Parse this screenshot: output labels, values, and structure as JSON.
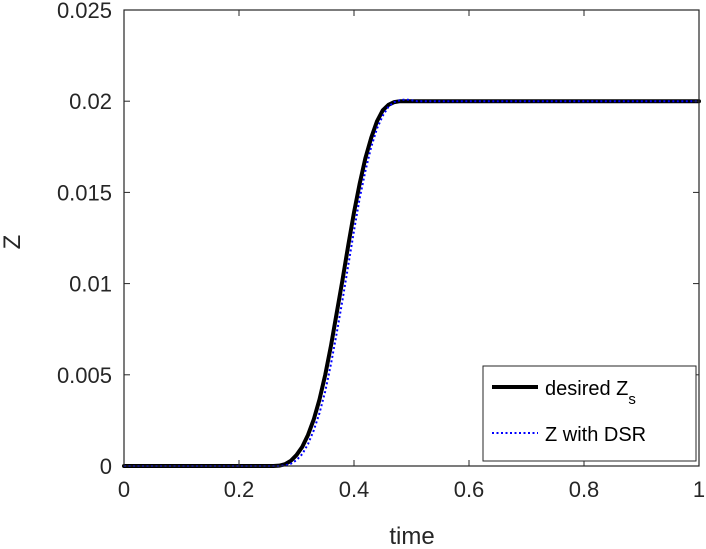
{
  "chart_data": {
    "type": "line",
    "xlabel": "time",
    "ylabel": "Z",
    "xlim": [
      0,
      1
    ],
    "ylim": [
      0,
      0.025
    ],
    "xticks": [
      "0",
      "0.2",
      "0.4",
      "0.6",
      "0.8",
      "1"
    ],
    "yticks": [
      "0",
      "0.005",
      "0.01",
      "0.015",
      "0.02",
      "0.025"
    ],
    "grid": false,
    "legend_position": "bottom-right",
    "series": [
      {
        "name": "desired Z",
        "name_subscript": "s",
        "style": "solid",
        "color": "#000000",
        "x": [
          0,
          0.1,
          0.2,
          0.26,
          0.27,
          0.28,
          0.29,
          0.3,
          0.31,
          0.32,
          0.33,
          0.34,
          0.35,
          0.36,
          0.37,
          0.38,
          0.39,
          0.4,
          0.41,
          0.42,
          0.43,
          0.44,
          0.45,
          0.46,
          0.47,
          0.48,
          0.49,
          0.5,
          0.6,
          0.7,
          0.8,
          0.9,
          1.0
        ],
        "y": [
          0,
          0,
          0,
          0,
          2e-05,
          0.0001,
          0.00028,
          0.0006,
          0.00105,
          0.0017,
          0.00255,
          0.00365,
          0.005,
          0.0066,
          0.0084,
          0.0102,
          0.0121,
          0.0139,
          0.0155,
          0.0169,
          0.018,
          0.0189,
          0.0195,
          0.0198,
          0.01995,
          0.02,
          0.02,
          0.02,
          0.02,
          0.02,
          0.02,
          0.02,
          0.02
        ]
      },
      {
        "name": "Z with DSR",
        "style": "dotted",
        "color": "#0000ff",
        "x": [
          0,
          0.1,
          0.2,
          0.27,
          0.28,
          0.29,
          0.3,
          0.31,
          0.32,
          0.33,
          0.34,
          0.35,
          0.36,
          0.37,
          0.38,
          0.39,
          0.4,
          0.41,
          0.42,
          0.43,
          0.44,
          0.45,
          0.46,
          0.47,
          0.48,
          0.49,
          0.5,
          0.51,
          0.52,
          0.6,
          0.7,
          0.8,
          0.9,
          1.0
        ],
        "y": [
          0,
          0,
          0,
          0,
          3e-05,
          0.00012,
          0.00032,
          0.00065,
          0.0012,
          0.00195,
          0.0029,
          0.0041,
          0.0056,
          0.0073,
          0.0091,
          0.011,
          0.0129,
          0.0147,
          0.0162,
          0.0175,
          0.0185,
          0.0192,
          0.0197,
          0.01995,
          0.02005,
          0.0201,
          0.02005,
          0.02,
          0.02,
          0.02,
          0.02,
          0.02,
          0.02,
          0.02
        ]
      }
    ]
  }
}
